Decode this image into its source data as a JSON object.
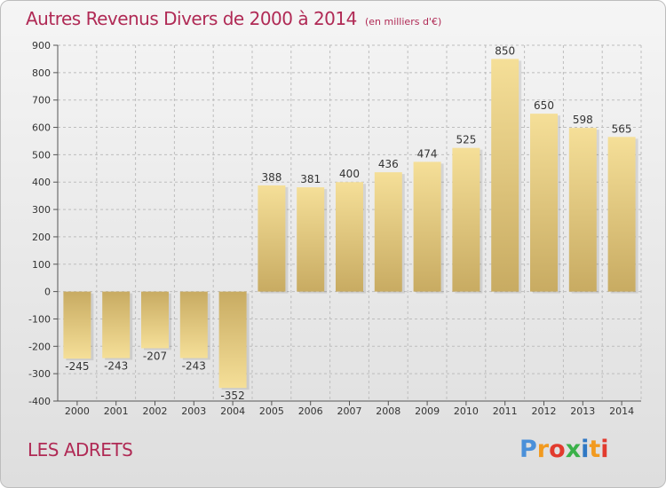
{
  "title": "Autres Revenus Divers de 2000 à 2014",
  "subtitle": "(en milliers d'€)",
  "commune": "LES ADRETS",
  "logo": {
    "text": "Proxiti",
    "letter_colors": [
      "#4a90d9",
      "#f29a1f",
      "#e23b2e",
      "#3bb14a",
      "#2f78c4",
      "#f29a1f",
      "#e23b2e"
    ]
  },
  "colors": {
    "bar_light": "#f5df98",
    "bar_dark": "#c8ab62",
    "axis_text": "#333333",
    "grid": "#bdbdbd"
  },
  "chart_data": {
    "type": "bar",
    "categories": [
      "2000",
      "2001",
      "2002",
      "2003",
      "2004",
      "2005",
      "2006",
      "2007",
      "2008",
      "2009",
      "2010",
      "2011",
      "2012",
      "2013",
      "2014"
    ],
    "values": [
      -245,
      -243,
      -207,
      -243,
      -352,
      388,
      381,
      400,
      436,
      474,
      525,
      850,
      650,
      598,
      565
    ],
    "ylim": [
      -400,
      900
    ],
    "yticks": [
      -400,
      -300,
      -200,
      -100,
      0,
      100,
      200,
      300,
      400,
      500,
      600,
      700,
      800,
      900
    ],
    "grid": true
  }
}
